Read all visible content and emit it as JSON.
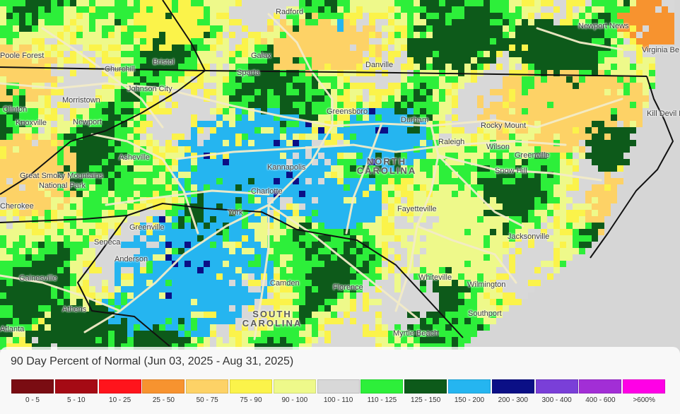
{
  "map": {
    "title": "90 Day Percent of Normal (Jun 03, 2025 - Aug 31, 2025)",
    "background_color": "#d6d6d6",
    "road_color": "#f3ecc8",
    "boundary_color": "#111111",
    "cities": [
      {
        "name": "Radford"
      },
      {
        "name": "Newport News"
      },
      {
        "name": "Virginia Be"
      },
      {
        "name": "Poole Forest"
      },
      {
        "name": "Bristol"
      },
      {
        "name": "Galax"
      },
      {
        "name": "Sparta"
      },
      {
        "name": "Danville"
      },
      {
        "name": "Churchill"
      },
      {
        "name": "Johnson City"
      },
      {
        "name": "Clinton"
      },
      {
        "name": "Morristown"
      },
      {
        "name": "Knoxville"
      },
      {
        "name": "Newport"
      },
      {
        "name": "Greensboro"
      },
      {
        "name": "Durham"
      },
      {
        "name": "Rocky Mount"
      },
      {
        "name": "Kill Devil Hawk"
      },
      {
        "name": "Raleigh"
      },
      {
        "name": "Wilson"
      },
      {
        "name": "Greenville"
      },
      {
        "name": "Snow Hill"
      },
      {
        "name": "Asheville"
      },
      {
        "name": "Great Smoky Mountains"
      },
      {
        "name": "National Park"
      },
      {
        "name": "Kannapolis"
      },
      {
        "name": "Charlotte"
      },
      {
        "name": "Fayetteville"
      },
      {
        "name": "Cherokee"
      },
      {
        "name": "York"
      },
      {
        "name": "Greenville"
      },
      {
        "name": "Seneca"
      },
      {
        "name": "Anderson"
      },
      {
        "name": "Jacksonville"
      },
      {
        "name": "Gainesville"
      },
      {
        "name": "Camden"
      },
      {
        "name": "Florence"
      },
      {
        "name": "Whiteville"
      },
      {
        "name": "Wilmington"
      },
      {
        "name": "Athens"
      },
      {
        "name": "Southport"
      },
      {
        "name": "Atlanta"
      },
      {
        "name": "Myrtle Beach"
      }
    ],
    "states": [
      {
        "name": "NORTH CAROLINA"
      },
      {
        "name": "SOUTH CAROLINA"
      }
    ]
  },
  "legend": {
    "title": "90 Day Percent of Normal (Jun 03, 2025 - Aug 31, 2025)",
    "items": [
      {
        "label": "0 - 5",
        "color": "#7a0c12"
      },
      {
        "label": "5 - 10",
        "color": "#a50a14"
      },
      {
        "label": "10 - 25",
        "color": "#ff141c"
      },
      {
        "label": "25 - 50",
        "color": "#f7932f"
      },
      {
        "label": "50 - 75",
        "color": "#fdd266"
      },
      {
        "label": "75 - 90",
        "color": "#fbf34a"
      },
      {
        "label": "90 - 100",
        "color": "#eef98a"
      },
      {
        "label": "100 - 110",
        "color": "#d8d8d8"
      },
      {
        "label": "110 - 125",
        "color": "#2def3a"
      },
      {
        "label": "125 - 150",
        "color": "#0d5a1a"
      },
      {
        "label": "150 - 200",
        "color": "#25b5f0"
      },
      {
        "label": "200 - 300",
        "color": "#0b0f86"
      },
      {
        "label": "300 - 400",
        "color": "#7a3fd8"
      },
      {
        "label": "400 - 600",
        "color": "#a22ed6"
      },
      {
        "label": ">600%",
        "color": "#ff00e6"
      }
    ]
  }
}
